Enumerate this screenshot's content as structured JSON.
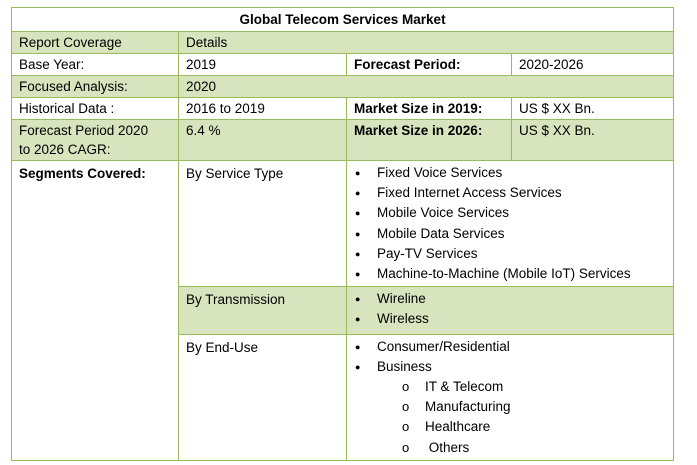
{
  "title": "Global Telecom Services Market",
  "header": {
    "col1": "Report Coverage",
    "col2": "Details"
  },
  "rows": {
    "base_year_label": "Base Year:",
    "base_year_value": "2019",
    "forecast_period_label": "Forecast Period:",
    "forecast_period_value": "2020-2026",
    "focused_label": "Focused Analysis:",
    "focused_value": "2020",
    "historical_label": "Historical Data :",
    "historical_value": "2016 to 2019",
    "market_2019_label": "Market Size in 2019:",
    "market_2019_value": "US $ XX Bn.",
    "cagr_label_line1": "Forecast Period 2020",
    "cagr_label_line2": "to 2026 CAGR:",
    "cagr_value": "6.4 %",
    "market_2026_label": "Market Size in 2026:",
    "market_2026_value": "US $ XX Bn."
  },
  "segments": {
    "label": "Segments Covered:",
    "service_type": {
      "label": "By Service Type",
      "items": [
        "Fixed Voice Services",
        "Fixed Internet Access Services",
        "Mobile Voice Services",
        "Mobile Data Services",
        "Pay-TV Services",
        "Machine-to-Machine (Mobile IoT) Services"
      ]
    },
    "transmission": {
      "label": "By Transmission",
      "items": [
        "Wireline",
        "Wireless"
      ]
    },
    "end_use": {
      "label": "By End-Use",
      "items": [
        "Consumer/Residential",
        "Business"
      ],
      "business_sub": [
        "IT & Telecom",
        "Manufacturing",
        "Healthcare",
        " Others"
      ]
    }
  },
  "colors": {
    "border": "#9bbb59",
    "band": "#d7e4bd"
  }
}
